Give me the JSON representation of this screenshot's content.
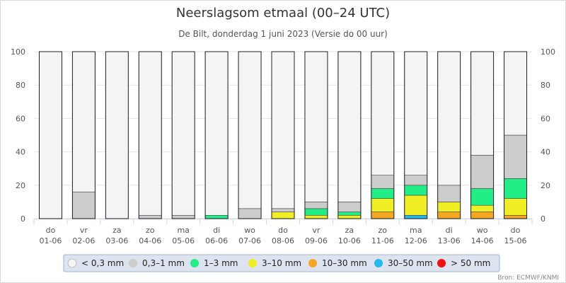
{
  "chart_data": {
    "type": "bar",
    "stacked": true,
    "title": "Neerslagsom etmaal (00–24 UTC)",
    "subtitle": "De Bilt, donderdag 1 juni 2023 (Versie do 00 uur)",
    "ylim": [
      0,
      100
    ],
    "yticks": [
      0,
      20,
      40,
      60,
      80,
      100
    ],
    "credit": "Bron: ECMWF/KNMI",
    "categories": [
      {
        "day": "do",
        "date": "01-06"
      },
      {
        "day": "vr",
        "date": "02-06"
      },
      {
        "day": "za",
        "date": "03-06"
      },
      {
        "day": "zo",
        "date": "04-06"
      },
      {
        "day": "ma",
        "date": "05-06"
      },
      {
        "day": "di",
        "date": "06-06"
      },
      {
        "day": "wo",
        "date": "07-06"
      },
      {
        "day": "do",
        "date": "08-06"
      },
      {
        "day": "vr",
        "date": "09-06"
      },
      {
        "day": "za",
        "date": "10-06"
      },
      {
        "day": "zo",
        "date": "11-06"
      },
      {
        "day": "ma",
        "date": "12-06"
      },
      {
        "day": "di",
        "date": "13-06"
      },
      {
        "day": "wo",
        "date": "14-06"
      },
      {
        "day": "do",
        "date": "15-06"
      }
    ],
    "series": [
      {
        "name": "> 50 mm",
        "color": "#ee1111",
        "values": [
          0,
          0,
          0,
          0,
          0,
          0,
          0,
          0,
          0,
          0,
          0,
          0,
          0,
          0,
          0
        ]
      },
      {
        "name": "30–50 mm",
        "color": "#22bbee",
        "values": [
          0,
          0,
          0,
          0,
          0,
          0,
          0,
          0,
          0,
          0,
          0,
          2,
          0,
          0,
          0
        ]
      },
      {
        "name": "10–30 mm",
        "color": "#f5a623",
        "values": [
          0,
          0,
          0,
          0,
          0,
          0,
          0,
          0,
          0,
          0,
          4,
          0,
          4,
          4,
          2
        ]
      },
      {
        "name": "3–10 mm",
        "color": "#eeee22",
        "values": [
          0,
          0,
          0,
          0,
          0,
          0,
          0,
          4,
          2,
          2,
          8,
          12,
          6,
          4,
          10
        ]
      },
      {
        "name": "1–3 mm",
        "color": "#22ee88",
        "values": [
          0,
          0,
          0,
          0,
          0,
          2,
          0,
          0,
          4,
          2,
          6,
          6,
          0,
          10,
          12
        ]
      },
      {
        "name": "0,3–1 mm",
        "color": "#cccccc",
        "values": [
          0,
          16,
          0,
          2,
          2,
          0,
          6,
          2,
          4,
          6,
          8,
          6,
          10,
          20,
          26
        ]
      },
      {
        "name": "< 0,3 mm",
        "color": "#f4f4f4",
        "values": [
          100,
          84,
          100,
          98,
          98,
          98,
          94,
          94,
          90,
          90,
          74,
          74,
          80,
          62,
          50
        ]
      }
    ],
    "legend_order": [
      "< 0,3 mm",
      "0,3–1 mm",
      "1–3 mm",
      "3–10 mm",
      "10–30 mm",
      "30–50 mm",
      "> 50 mm"
    ],
    "legend_position": "bottom-center"
  }
}
